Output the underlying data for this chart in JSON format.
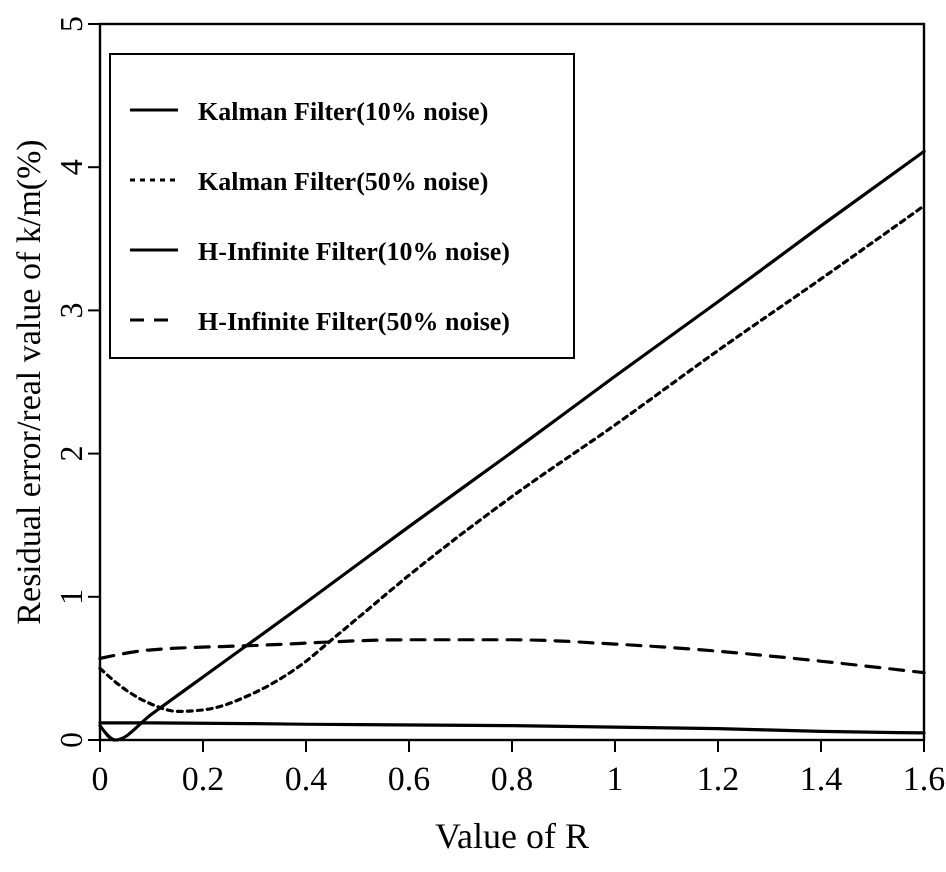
{
  "chart_data": {
    "type": "line",
    "xlabel": "Value of R",
    "ylabel": "Residual error/real value of k/m(%)",
    "xlim": [
      0,
      1.6
    ],
    "xticks": [
      0,
      0.2,
      0.4,
      0.6,
      0.8,
      1,
      1.2,
      1.4,
      1.6
    ],
    "ylim": [
      0,
      5
    ],
    "yticks": [
      0,
      1,
      2,
      3,
      4,
      5
    ],
    "grid": false,
    "legend": "top left",
    "marker": "none",
    "series": [
      {
        "name": "Kalman Filter(10% noise)",
        "color": "#000000",
        "line_style": "solid",
        "x": [
          0,
          0.03,
          0.1,
          0.2,
          0.4,
          0.6,
          0.8,
          1.0,
          1.2,
          1.4,
          1.6
        ],
        "values": [
          0.1,
          0,
          0.18,
          0.44,
          0.96,
          1.49,
          2.01,
          2.54,
          3.06,
          3.59,
          4.11
        ]
      },
      {
        "name": "Kalman Filter(50% noise)",
        "color": "#000000",
        "line_style": "dotted",
        "x": [
          0,
          0.05,
          0.1,
          0.15,
          0.2,
          0.3,
          0.4,
          0.45,
          0.5,
          0.6,
          0.8,
          1.0,
          1.2,
          1.4,
          1.6
        ],
        "values": [
          0.5,
          0.35,
          0.25,
          0.2,
          0.21,
          0.33,
          0.55,
          0.7,
          0.85,
          1.15,
          1.7,
          2.2,
          2.72,
          3.22,
          3.73
        ]
      },
      {
        "name": "H-Infinite Filter(10% noise)",
        "color": "#000000",
        "line_style": "solid",
        "x": [
          0,
          0.1,
          0.4,
          0.8,
          1.2,
          1.4,
          1.6
        ],
        "values": [
          0.12,
          0.12,
          0.11,
          0.1,
          0.08,
          0.06,
          0.05
        ]
      },
      {
        "name": "H-Infinite Filter(50% noise)",
        "color": "#000000",
        "line_style": "dashed",
        "x": [
          0,
          0.1,
          0.3,
          0.6,
          0.8,
          1.0,
          1.2,
          1.4,
          1.6
        ],
        "values": [
          0.57,
          0.63,
          0.66,
          0.7,
          0.7,
          0.67,
          0.62,
          0.55,
          0.47
        ]
      }
    ]
  }
}
